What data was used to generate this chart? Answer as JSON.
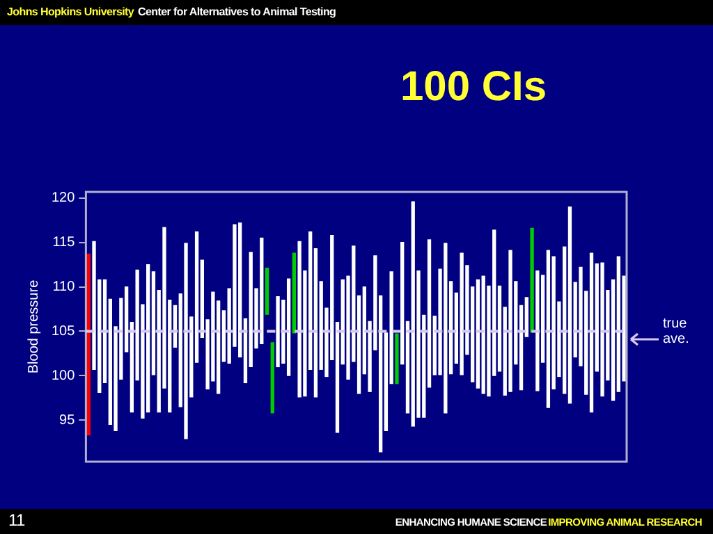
{
  "chart_data": {
    "type": "bar",
    "title": "100 CIs",
    "ylabel": "Blood pressure",
    "annotations": [
      "Johns Hopkins University",
      "Center for Alternatives to Animal Testing",
      "11",
      "ENHANCING HUMANE SCIENCE",
      "IMPROVING ANIMAL RESEARCH"
    ],
    "categories": [
      null,
      null,
      null,
      null,
      null,
      null,
      null,
      null,
      null,
      null,
      null,
      null,
      null,
      null,
      null,
      null,
      null,
      null,
      null,
      null,
      null,
      null,
      null,
      null,
      null,
      null,
      null,
      null,
      null,
      null,
      null,
      null,
      null,
      null,
      null,
      null,
      null,
      null,
      null,
      null,
      null,
      null,
      null,
      null,
      null,
      null,
      null,
      null,
      null,
      null,
      null,
      null,
      null,
      null,
      null,
      null,
      null,
      null,
      null,
      null,
      null,
      null,
      null,
      null,
      null,
      null,
      null,
      null,
      null,
      null,
      null,
      null,
      null,
      null,
      null,
      null,
      null,
      null,
      null,
      null,
      null,
      null,
      null,
      null,
      null,
      null,
      null,
      null,
      null,
      null,
      null,
      null,
      null,
      null,
      null,
      null,
      null,
      null,
      null,
      null
    ],
    "base": [
      93.3,
      100.7,
      98.1,
      99.2,
      94.5,
      93.8,
      99.6,
      102.7,
      95.9,
      99.5,
      95.2,
      95.9,
      100.1,
      95.9,
      98.6,
      95.9,
      103.2,
      96.5,
      92.9,
      97.6,
      101.5,
      104.3,
      98.5,
      99.4,
      98.0,
      101.6,
      101.4,
      103.3,
      102.1,
      99.2,
      101.0,
      103.1,
      103.6,
      106.9,
      95.8,
      101.0,
      101.4,
      100.0,
      104.8,
      97.6,
      97.7,
      100.7,
      97.6,
      100.7,
      99.9,
      101.8,
      93.6,
      101.3,
      99.6,
      101.6,
      98.0,
      100.2,
      98.2,
      102.9,
      91.4,
      93.8,
      99.1,
      99.1,
      101.3,
      95.8,
      94.3,
      95.3,
      95.3,
      98.7,
      100.1,
      100.1,
      95.8,
      100.2,
      101.4,
      100.1,
      102.4,
      99.3,
      98.6,
      98.0,
      97.7,
      100.0,
      100.5,
      97.8,
      98.2,
      101.3,
      98.4,
      104.4,
      104.9,
      98.3,
      101.5,
      96.4,
      98.5,
      99.9,
      98.0,
      96.9,
      102.1,
      101.1,
      97.9,
      95.9,
      100.5,
      97.7,
      99.5,
      97.2,
      98.2,
      99.4
    ],
    "values": [
      20.4,
      14.4,
      12.7,
      11.6,
      14.1,
      11.7,
      9.1,
      7.3,
      10.1,
      12.4,
      12.8,
      16.6,
      11.6,
      13.7,
      18.1,
      12.6,
      4.7,
      12.7,
      22.0,
      9.0,
      14.7,
      8.7,
      7.8,
      10.0,
      10.4,
      5.7,
      8.4,
      13.7,
      15.1,
      7.2,
      12.9,
      6.7,
      11.9,
      5.2,
      7.9,
      7.9,
      7.1,
      10.9,
      9.0,
      17.5,
      14.1,
      15.5,
      16.7,
      9.9,
      7.7,
      14.0,
      12.4,
      9.5,
      11.6,
      13.0,
      11.0,
      9.8,
      7.9,
      10.6,
      17.6,
      11.0,
      12.6,
      5.6,
      13.7,
      10.3,
      25.3,
      16.5,
      11.5,
      16.6,
      6.6,
      11.9,
      19.1,
      10.4,
      7.9,
      13.7,
      10.0,
      10.7,
      12.2,
      13.2,
      12.4,
      16.4,
      9.6,
      9.9,
      15.9,
      9.3,
      9.5,
      4.4,
      11.7,
      13.5,
      9.8,
      17.7,
      14.9,
      8.4,
      16.5,
      22.1,
      8.4,
      11.1,
      11.6,
      17.9,
      12.1,
      15.0,
      10.1,
      13.6,
      15.2,
      11.8
    ],
    "colors": [
      "#ff0000",
      "#ffffff",
      "#ffffff",
      "#ffffff",
      "#ffffff",
      "#ffffff",
      "#ffffff",
      "#ffffff",
      "#ffffff",
      "#ffffff",
      "#ffffff",
      "#ffffff",
      "#ffffff",
      "#ffffff",
      "#ffffff",
      "#ffffff",
      "#ffffff",
      "#ffffff",
      "#ffffff",
      "#ffffff",
      "#ffffff",
      "#ffffff",
      "#ffffff",
      "#ffffff",
      "#ffffff",
      "#ffffff",
      "#ffffff",
      "#ffffff",
      "#ffffff",
      "#ffffff",
      "#ffffff",
      "#ffffff",
      "#ffffff",
      "#00cc00",
      "#00cc00",
      "#ffffff",
      "#ffffff",
      "#ffffff",
      "#00cc00",
      "#ffffff",
      "#ffffff",
      "#ffffff",
      "#ffffff",
      "#ffffff",
      "#ffffff",
      "#ffffff",
      "#ffffff",
      "#ffffff",
      "#ffffff",
      "#ffffff",
      "#ffffff",
      "#ffffff",
      "#ffffff",
      "#ffffff",
      "#ffffff",
      "#ffffff",
      "#ffffff",
      "#00cc00",
      "#ffffff",
      "#ffffff",
      "#ffffff",
      "#ffffff",
      "#ffffff",
      "#ffffff",
      "#ffffff",
      "#ffffff",
      "#ffffff",
      "#ffffff",
      "#ffffff",
      "#ffffff",
      "#ffffff",
      "#ffffff",
      "#ffffff",
      "#ffffff",
      "#ffffff",
      "#ffffff",
      "#ffffff",
      "#ffffff",
      "#ffffff",
      "#ffffff",
      "#ffffff",
      "#ffffff",
      "#00cc00",
      "#ffffff",
      "#ffffff",
      "#ffffff",
      "#ffffff",
      "#ffffff",
      "#ffffff",
      "#ffffff",
      "#ffffff",
      "#ffffff",
      "#ffffff",
      "#ffffff",
      "#ffffff",
      "#ffffff",
      "#ffffff",
      "#ffffff",
      "#ffffff",
      "#ffffff"
    ],
    "ylim": [
      90.3,
      120.7
    ],
    "yticks": [
      95,
      100,
      105,
      110,
      115,
      120
    ],
    "ref_lines": [
      {
        "axis": "y",
        "value": 105,
        "label": "true ave.",
        "color": "#d8c8f0",
        "line_style": "dashed"
      }
    ]
  }
}
